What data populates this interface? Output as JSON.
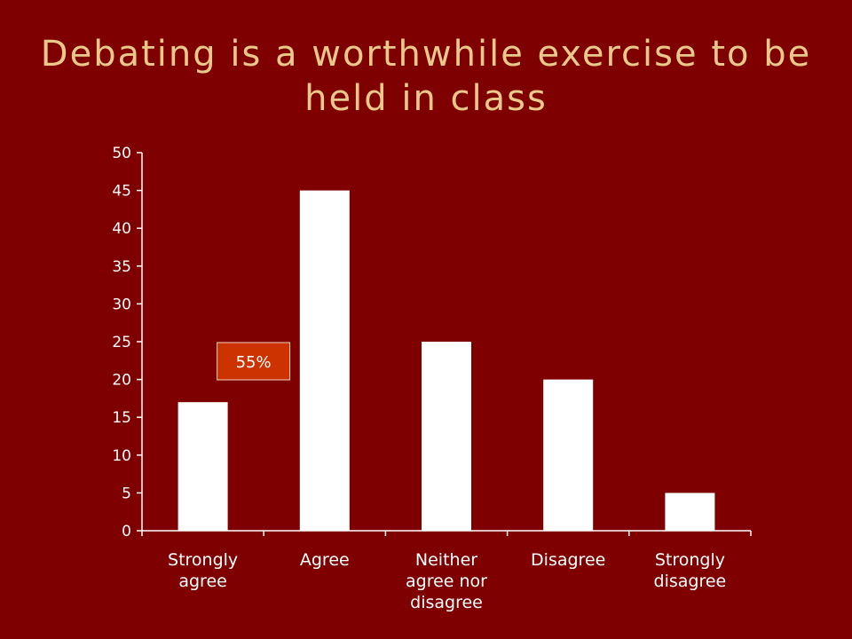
{
  "slide": {
    "title": "Debating is a worthwhile exercise to be held in class"
  },
  "colors": {
    "background": "#7f0000",
    "title": "#e8c98a",
    "bars": "#ffffff",
    "axis": "#ffffff",
    "callout_fill": "#cc3300",
    "callout_border": "#f0d0c0"
  },
  "chart_data": {
    "type": "bar",
    "title": "Debating is a worthwhile exercise to be held in class",
    "categories": [
      [
        "Strongly",
        "agree"
      ],
      [
        "Agree"
      ],
      [
        "Neither",
        "agree nor",
        "disagree"
      ],
      [
        "Disagree"
      ],
      [
        "Strongly",
        "disagree"
      ]
    ],
    "values": [
      17,
      45,
      25,
      20,
      5
    ],
    "ylim": [
      0,
      50
    ],
    "yticks": [
      0,
      5,
      10,
      15,
      20,
      25,
      30,
      35,
      40,
      45,
      50
    ],
    "grid": false,
    "legend": "none",
    "annotations": [
      {
        "text": "55%",
        "near_category": 0
      }
    ]
  }
}
